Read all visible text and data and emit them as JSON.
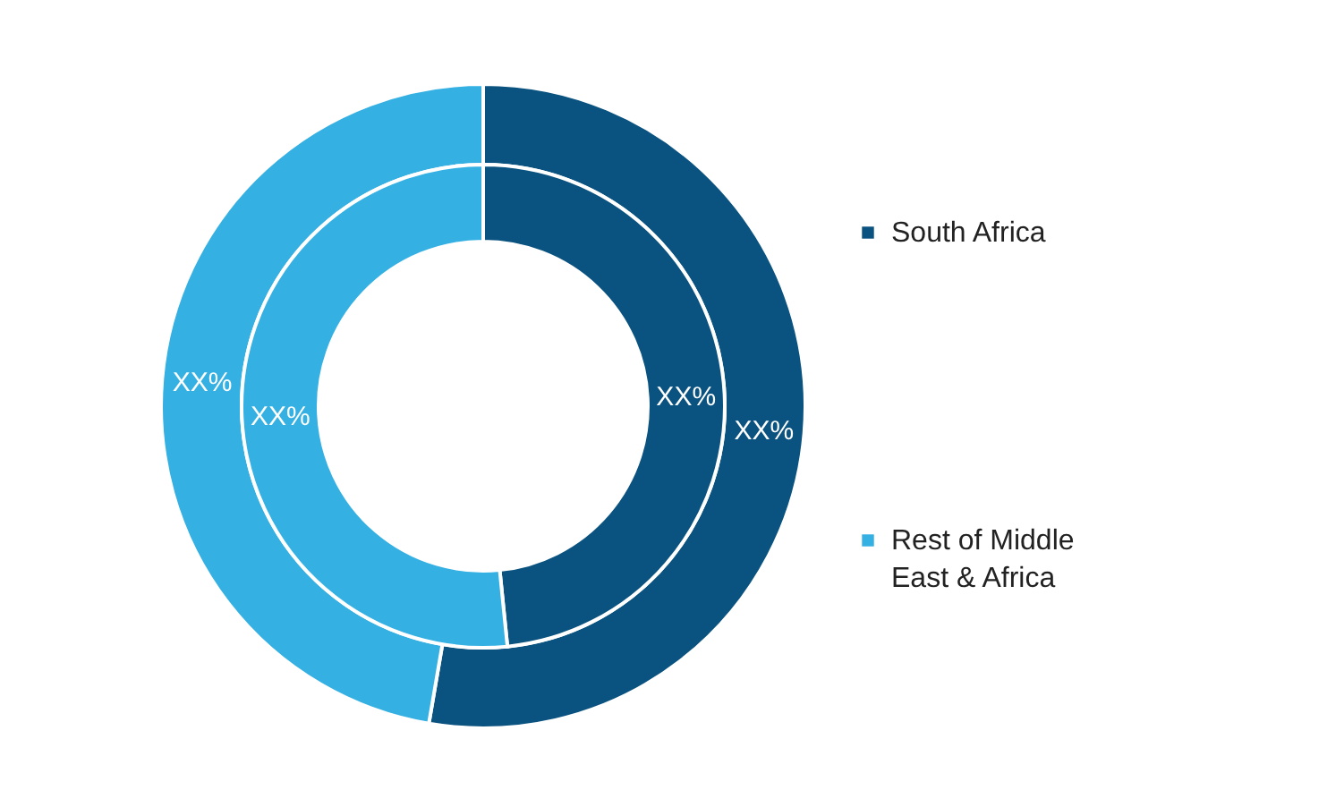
{
  "chart_data": {
    "type": "donut",
    "categories": [
      "South Africa",
      "Rest of Middle East & Africa"
    ],
    "colors": [
      "#0a527f",
      "#35b0e3"
    ],
    "series": [
      {
        "values": [
          52.7,
          47.3
        ],
        "value_labels": [
          "XX%",
          "XX%"
        ]
      },
      {
        "values": [
          48.4,
          51.6
        ],
        "value_labels": [
          "XX%",
          "XX%"
        ]
      }
    ],
    "legend": "right"
  }
}
